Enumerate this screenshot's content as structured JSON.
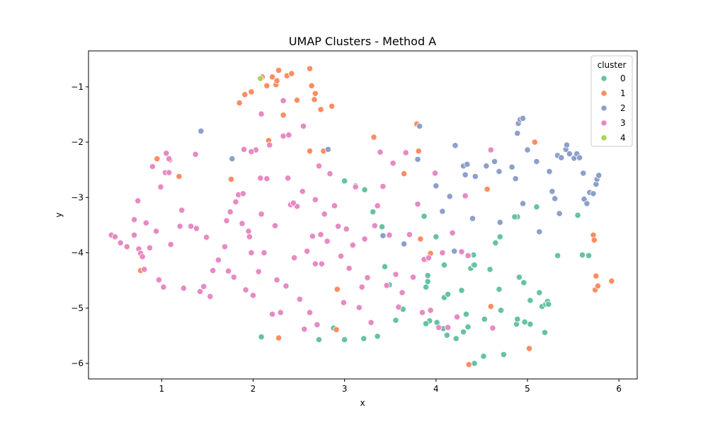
{
  "chart_data": {
    "type": "scatter",
    "title": "UMAP Clusters - Method A",
    "xlabel": "x",
    "ylabel": "y",
    "xlim": [
      0.2,
      6.2
    ],
    "ylim": [
      -6.28,
      -0.35
    ],
    "xticks": [
      1,
      2,
      3,
      4,
      5,
      6
    ],
    "yticks": [
      -1,
      -2,
      -3,
      -4,
      -5,
      -6
    ],
    "grid": false,
    "legend": {
      "title": "cluster",
      "placement": "top-right"
    },
    "series": [
      {
        "name": "0",
        "color": "#66c2a5",
        "x": [
          2.09,
          2.72,
          3.0,
          2.88,
          3.0,
          3.12,
          3.22,
          3.31,
          3.41,
          3.44,
          3.49,
          3.56,
          3.64,
          3.36,
          3.21,
          3.87,
          3.89,
          3.91,
          3.91,
          3.93,
          3.89,
          4.0,
          4.01,
          4.08,
          4.09,
          4.13,
          4.12,
          4.09,
          4.13,
          4.28,
          4.3,
          4.33,
          4.35,
          4.38,
          4.41,
          4.42,
          4.41,
          4.52,
          4.53,
          4.59,
          4.65,
          4.7,
          4.71,
          4.69,
          4.74,
          4.88,
          4.89,
          4.91,
          4.89,
          4.96,
          4.97,
          5.03,
          5.03,
          5.1,
          5.13,
          5.16,
          5.19,
          5.2,
          5.22,
          5.23,
          5.33,
          5.55,
          5.6,
          5.67,
          4.42,
          4.22,
          4.86
        ],
        "y": [
          -5.52,
          -5.57,
          -5.57,
          -5.36,
          -2.7,
          -2.79,
          -2.86,
          -3.26,
          -3.53,
          -4.25,
          -4.58,
          -5.22,
          -5.02,
          -5.51,
          -5.55,
          -3.34,
          -4.62,
          -4.52,
          -4.41,
          -5.23,
          -5.28,
          -3.71,
          -5.26,
          -5.37,
          -4.81,
          -4.75,
          -5.49,
          -4.22,
          -4.75,
          -4.68,
          -5.43,
          -5.11,
          -5.34,
          -4.28,
          -4.22,
          -6.0,
          -4.04,
          -5.87,
          -5.2,
          -4.3,
          -3.82,
          -3.71,
          -5.04,
          -4.66,
          -5.84,
          -5.29,
          -3.35,
          -4.44,
          -5.2,
          -4.54,
          -5.25,
          -5.29,
          -4.86,
          -3.17,
          -4.72,
          -4.97,
          -5.44,
          -4.93,
          -4.88,
          -4.93,
          -4.05,
          -3.32,
          -4.04,
          -4.05,
          -4.22,
          -5.55,
          -3.35
        ]
      },
      {
        "name": "1",
        "color": "#fc8d62",
        "x": [
          0.77,
          0.95,
          1.19,
          1.76,
          1.85,
          1.91,
          1.98,
          2.1,
          2.15,
          2.17,
          2.21,
          2.25,
          2.26,
          2.28,
          2.33,
          2.37,
          2.42,
          2.48,
          2.62,
          2.64,
          2.67,
          2.68,
          2.74,
          2.77,
          2.86,
          2.92,
          2.91,
          2.28,
          2.62,
          3.32,
          3.65,
          3.79,
          3.81,
          3.83,
          3.94,
          4.36,
          4.56,
          4.6,
          5.02,
          5.08,
          5.72,
          5.73,
          5.74,
          5.75,
          5.77,
          5.92
        ],
        "y": [
          -4.32,
          -2.3,
          -2.62,
          -2.67,
          -1.29,
          -1.14,
          -1.09,
          -0.82,
          -0.98,
          -1.97,
          -0.82,
          -0.96,
          -0.89,
          -0.7,
          -1.51,
          -0.8,
          -0.76,
          -1.24,
          -0.67,
          -0.98,
          -1.23,
          -1.12,
          -1.41,
          -2.16,
          -1.35,
          -4.66,
          -5.39,
          -5.54,
          -2.16,
          -1.91,
          -2.57,
          -1.67,
          -2.16,
          -3.75,
          -4.01,
          -6.02,
          -2.85,
          -4.97,
          -5.73,
          -2.0,
          -3.68,
          -3.77,
          -4.67,
          -4.42,
          -4.6,
          -4.51
        ]
      },
      {
        "name": "2",
        "color": "#8da0cb",
        "x": [
          1.43,
          1.77,
          2.82,
          3.42,
          3.65,
          3.8,
          3.82,
          4.0,
          4.07,
          4.15,
          4.2,
          4.21,
          4.3,
          4.32,
          4.34,
          4.36,
          4.43,
          4.55,
          4.64,
          4.69,
          4.7,
          4.83,
          4.87,
          4.89,
          4.9,
          4.92,
          4.95,
          5.0,
          5.1,
          5.24,
          5.27,
          5.3,
          5.33,
          5.35,
          5.37,
          5.42,
          5.43,
          5.46,
          5.51,
          5.54,
          5.57,
          5.61,
          5.62,
          5.65,
          5.68,
          5.72,
          5.75,
          5.76,
          5.78,
          5.13,
          4.95,
          4.4
        ],
        "y": [
          -1.8,
          -2.3,
          -2.13,
          -3.69,
          -3.84,
          -2.31,
          -1.71,
          -2.79,
          -3.25,
          -2.98,
          -3.97,
          -2.06,
          -2.43,
          -2.59,
          -2.4,
          -4.05,
          -2.62,
          -2.43,
          -2.35,
          -2.53,
          -3.45,
          -2.45,
          -2.66,
          -1.84,
          -1.66,
          -1.59,
          -3.11,
          -2.14,
          -2.35,
          -2.53,
          -2.89,
          -3.02,
          -2.24,
          -3.29,
          -2.28,
          -2.13,
          -2.05,
          -2.21,
          -2.29,
          -2.21,
          -2.28,
          -2.56,
          -3.03,
          -3.11,
          -2.91,
          -2.93,
          -2.76,
          -2.67,
          -2.6,
          -3.62,
          -1.57,
          -3.38
        ]
      },
      {
        "name": "3",
        "color": "#e78ac3",
        "x": [
          0.45,
          0.49,
          0.55,
          0.62,
          0.7,
          0.7,
          0.74,
          0.75,
          0.77,
          0.79,
          0.81,
          0.83,
          0.87,
          0.9,
          0.94,
          0.97,
          0.99,
          1.02,
          1.04,
          1.08,
          1.09,
          1.1,
          1.2,
          1.22,
          1.24,
          1.32,
          1.38,
          1.42,
          1.46,
          1.49,
          1.53,
          1.56,
          1.62,
          1.69,
          1.71,
          1.73,
          1.75,
          1.79,
          1.81,
          1.84,
          1.88,
          1.89,
          1.92,
          1.95,
          1.96,
          1.98,
          2.0,
          2.03,
          2.06,
          2.09,
          2.09,
          2.12,
          2.15,
          2.18,
          2.21,
          2.24,
          2.26,
          2.3,
          2.33,
          2.36,
          2.38,
          2.39,
          2.41,
          2.45,
          2.48,
          2.51,
          2.54,
          2.56,
          2.59,
          2.62,
          2.65,
          2.68,
          2.7,
          2.72,
          2.74,
          2.75,
          2.78,
          2.81,
          2.84,
          2.89,
          2.93,
          2.96,
          2.99,
          3.02,
          3.05,
          3.09,
          3.12,
          3.16,
          3.19,
          3.22,
          3.25,
          3.29,
          3.33,
          3.36,
          3.39,
          3.42,
          3.46,
          3.49,
          3.53,
          3.56,
          3.59,
          3.63,
          3.67,
          3.71,
          3.75,
          3.8,
          3.85,
          3.89,
          3.94,
          3.99,
          4.03,
          4.07,
          4.13,
          4.18,
          4.23,
          4.28,
          4.32,
          4.35,
          4.6,
          4.62,
          1.05,
          1.08,
          1.37,
          1.9,
          1.98,
          2.08,
          2.33,
          2.44,
          2.55,
          2.68,
          3.87,
          3.92
        ],
        "y": [
          -3.68,
          -3.71,
          -3.82,
          -3.89,
          -3.4,
          -3.68,
          -3.06,
          -3.93,
          -4.01,
          -4.07,
          -4.3,
          -3.46,
          -3.91,
          -2.44,
          -3.61,
          -4.49,
          -2.81,
          -4.62,
          -2.55,
          -2.55,
          -2.32,
          -3.85,
          -3.52,
          -3.23,
          -4.64,
          -3.52,
          -3.56,
          -4.7,
          -4.61,
          -3.72,
          -4.79,
          -4.32,
          -4.13,
          -3.89,
          -3.42,
          -4.33,
          -3.26,
          -4.44,
          -3.08,
          -2.95,
          -3.47,
          -2.93,
          -4.67,
          -3.61,
          -3.71,
          -4.0,
          -4.77,
          -2.14,
          -4.34,
          -3.3,
          -1.49,
          -4.0,
          -2.66,
          -2.05,
          -5.11,
          -3.51,
          -4.49,
          -5.08,
          -1.89,
          -4.6,
          -2.65,
          -1.87,
          -3.13,
          -4.09,
          -3.16,
          -4.84,
          -2.89,
          -5.38,
          -3.97,
          -5.08,
          -3.7,
          -4.2,
          -5.3,
          -2.43,
          -3.67,
          -4.2,
          -3.3,
          -3.79,
          -2.57,
          -3.15,
          -3.52,
          -4.06,
          -4.9,
          -3.57,
          -4.28,
          -3.86,
          -2.81,
          -4.99,
          -4.62,
          -3.75,
          -4.45,
          -5.26,
          -3.51,
          -3.15,
          -2.18,
          -2.8,
          -4.59,
          -3.68,
          -2.38,
          -4.39,
          -4.98,
          -4.72,
          -2.19,
          -3.67,
          -4.44,
          -3.12,
          -5.08,
          -4.12,
          -5.04,
          -2.56,
          -5.35,
          -4.0,
          -5.35,
          -3.64,
          -5.16,
          -3.98,
          -2.97,
          -4.05,
          -2.14,
          -5.36,
          -2.2,
          -2.3,
          -2.22,
          -2.13,
          -2.17,
          -2.65,
          -1.25,
          -3.1,
          -1.71,
          -3.04,
          -4.12,
          -4.09
        ]
      },
      {
        "name": "4",
        "color": "#a6d854",
        "x": [
          2.08
        ],
        "y": [
          -0.85
        ]
      }
    ]
  }
}
